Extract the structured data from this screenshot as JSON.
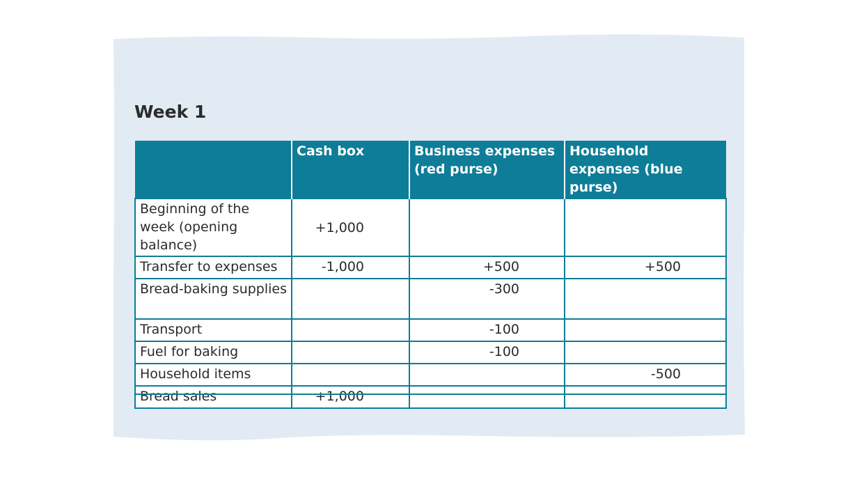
{
  "header": {
    "title": "Week 1"
  },
  "table": {
    "columns": [
      null,
      "Cash box",
      "Business expenses (red purse)",
      "Household expenses (blue purse)"
    ],
    "rows": [
      [
        "Beginning of the week (opening balance)",
        "+1,000",
        null,
        null
      ],
      [
        "Transfer to expenses",
        "-1,000",
        "+500",
        "+500"
      ],
      [
        "Bread-baking supplies",
        null,
        "-300",
        null
      ],
      [
        "Transport",
        null,
        "-100",
        null
      ],
      [
        "Fuel for baking",
        null,
        "-100",
        null
      ],
      [
        "Household items",
        null,
        null,
        "-500"
      ],
      [
        "Bread sales",
        "+1,000",
        null,
        null
      ]
    ]
  }
}
